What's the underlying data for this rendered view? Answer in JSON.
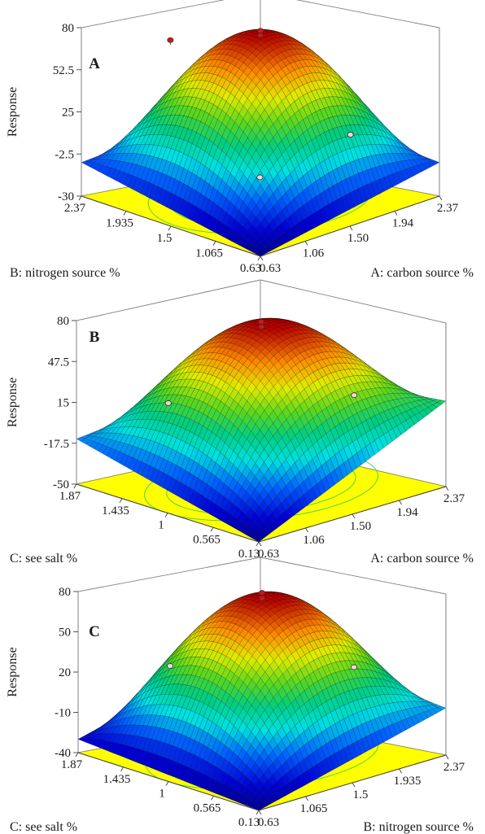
{
  "chart_data": [
    {
      "type": "surface",
      "panel_label": "A",
      "zlabel": "Response",
      "z_ticks": [
        "80",
        "52.5",
        "25",
        "-2.5",
        "-30"
      ],
      "zlim": [
        -30,
        80
      ],
      "x_axis": {
        "label": "A: carbon source %",
        "ticks": [
          "0.63",
          "1.06",
          "1.50",
          "1.94",
          "2.37"
        ],
        "range": [
          0.63,
          2.37
        ]
      },
      "y_axis": {
        "label": "B: nitrogen source %",
        "ticks": [
          "0.63",
          "1.065",
          "1.5",
          "1.935",
          "2.37"
        ],
        "range": [
          0.63,
          2.37
        ]
      },
      "surface": {
        "max": 75,
        "corner_left": -8,
        "corner_right": -8,
        "front": -30,
        "back": -2.5
      },
      "points": [
        {
          "x": 1.5,
          "y": 1.5,
          "z": 78,
          "above": true
        },
        {
          "x": 1.5,
          "y": 1.5,
          "z": 75,
          "above": true
        },
        {
          "x": 1.06,
          "y": 1.935,
          "z": 72,
          "above": true
        },
        {
          "x": 1.94,
          "y": 1.065,
          "z": 10,
          "above": false
        },
        {
          "x": 1.06,
          "y": 1.065,
          "z": 2,
          "above": false
        }
      ],
      "colors": {
        "plane": "#ffff00",
        "contour": "#33cc55"
      }
    },
    {
      "type": "surface",
      "panel_label": "B",
      "zlabel": "Response",
      "z_ticks": [
        "80",
        "47.5",
        "15",
        "-17.5",
        "-50"
      ],
      "zlim": [
        -50,
        80
      ],
      "x_axis": {
        "label": "A: carbon source %",
        "ticks": [
          "0.63",
          "1.06",
          "1.50",
          "1.94",
          "2.37"
        ],
        "range": [
          0.63,
          2.37
        ]
      },
      "y_axis": {
        "label": "C: see salt %",
        "ticks": [
          "0.13",
          "0.565",
          "1",
          "1.435",
          "1.87"
        ],
        "range": [
          0.13,
          1.87
        ]
      },
      "surface": {
        "max": 76,
        "corner_left": -14,
        "corner_right": 18,
        "front": -50,
        "back": 0
      },
      "points": [
        {
          "x": 1.5,
          "y": 1.0,
          "z": 80,
          "above": true
        },
        {
          "x": 1.5,
          "y": 1.0,
          "z": 76,
          "above": true
        },
        {
          "x": 1.06,
          "y": 1.435,
          "z": 15,
          "above": false
        },
        {
          "x": 1.94,
          "y": 0.565,
          "z": 22,
          "above": false
        }
      ],
      "colors": {
        "plane": "#ffff00",
        "contour": "#33cc55"
      }
    },
    {
      "type": "surface",
      "panel_label": "C",
      "zlabel": "Response",
      "z_ticks": [
        "80",
        "50",
        "20",
        "-10",
        "-40"
      ],
      "zlim": [
        -40,
        80
      ],
      "x_axis": {
        "label": "B: nitrogen source %",
        "ticks": [
          "0.63",
          "1.065",
          "1.5",
          "1.935",
          "2.37"
        ],
        "range": [
          0.63,
          2.37
        ]
      },
      "y_axis": {
        "label": "C: see salt %",
        "ticks": [
          "0.13",
          "0.565",
          "1",
          "1.435",
          "1.87"
        ],
        "range": [
          0.13,
          1.87
        ]
      },
      "surface": {
        "max": 75,
        "corner_left": -30,
        "corner_right": -5,
        "front": -40,
        "back": 5
      },
      "points": [
        {
          "x": 1.5,
          "y": 1.0,
          "z": 80,
          "above": true
        },
        {
          "x": 1.5,
          "y": 1.0,
          "z": 76,
          "above": true
        },
        {
          "x": 1.065,
          "y": 1.435,
          "z": 25,
          "above": false
        },
        {
          "x": 1.935,
          "y": 0.565,
          "z": 25,
          "above": false
        }
      ],
      "colors": {
        "plane": "#ffff00",
        "contour": "#33cc55"
      }
    }
  ]
}
